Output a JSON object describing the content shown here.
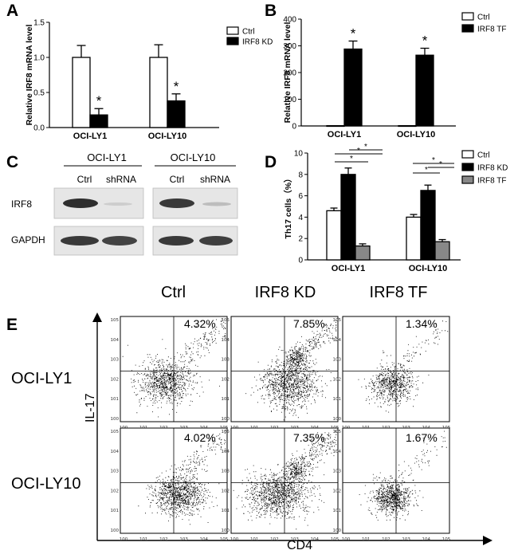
{
  "panels": {
    "A": "A",
    "B": "B",
    "C": "C",
    "D": "D",
    "E": "E"
  },
  "chart_data": [
    {
      "panel": "A",
      "type": "bar",
      "ylabel": "Relative IRF8 mRNA level",
      "ylim": [
        0,
        1.5
      ],
      "yticks": [
        0.0,
        0.5,
        1.0,
        1.5
      ],
      "ytick_labels": [
        "0.0",
        "0.5",
        "1.0",
        "1.5"
      ],
      "categories": [
        "OCI-LY1",
        "OCI-LY10"
      ],
      "series": [
        {
          "name": "Ctrl",
          "color": "#ffffff",
          "values": [
            1.0,
            1.0
          ],
          "errors": [
            0.17,
            0.18
          ],
          "sig": [
            "",
            ""
          ]
        },
        {
          "name": "IRF8 KD",
          "color": "#000000",
          "values": [
            0.18,
            0.38
          ],
          "errors": [
            0.09,
            0.1
          ],
          "sig": [
            "*",
            "*"
          ]
        }
      ]
    },
    {
      "panel": "B",
      "type": "bar",
      "ylabel": "Relative IRF8 mRNA level",
      "ylim": [
        0,
        400
      ],
      "yticks": [
        0,
        100,
        200,
        300,
        400
      ],
      "ytick_labels": [
        "0",
        "100",
        "200",
        "300",
        "400"
      ],
      "categories": [
        "OCI-LY1",
        "OCI-LY10"
      ],
      "series": [
        {
          "name": "Ctrl",
          "color": "#ffffff",
          "values": [
            1,
            1
          ],
          "errors": [
            0,
            0
          ],
          "sig": [
            "",
            ""
          ]
        },
        {
          "name": "IRF8 TF",
          "color": "#000000",
          "values": [
            288,
            265
          ],
          "errors": [
            30,
            26
          ],
          "sig": [
            "*",
            "*"
          ]
        }
      ]
    },
    {
      "panel": "D",
      "type": "bar",
      "ylabel": "Th17 cells（%）",
      "ylim": [
        0,
        10
      ],
      "yticks": [
        0,
        2,
        4,
        6,
        8,
        10
      ],
      "ytick_labels": [
        "0",
        "2",
        "4",
        "6",
        "8",
        "10"
      ],
      "categories": [
        "OCI-LY1",
        "OCI-LY10"
      ],
      "series": [
        {
          "name": "Ctrl",
          "color": "#ffffff",
          "values": [
            4.6,
            4.0
          ],
          "errors": [
            0.25,
            0.25
          ],
          "sig": [
            "",
            ""
          ]
        },
        {
          "name": "IRF8 KD",
          "color": "#000000",
          "values": [
            8.0,
            6.5
          ],
          "errors": [
            0.6,
            0.5
          ],
          "sig": [
            "",
            ""
          ]
        },
        {
          "name": "IRF8 TF",
          "color": "#888888",
          "values": [
            1.3,
            1.7
          ],
          "errors": [
            0.2,
            0.2
          ],
          "sig": [
            "",
            ""
          ]
        }
      ],
      "significance_brackets": [
        "*",
        "*",
        "*",
        "*",
        "*",
        "*"
      ]
    }
  ],
  "blot": {
    "groups": [
      {
        "title": "OCI-LY1",
        "lanes": [
          "Ctrl",
          "shRNA"
        ]
      },
      {
        "title": "OCI-LY10",
        "lanes": [
          "Ctrl",
          "shRNA"
        ]
      }
    ],
    "rows": [
      "IRF8",
      "GAPDH"
    ]
  },
  "flow": {
    "columns": [
      "Ctrl",
      "IRF8 KD",
      "IRF8 TF"
    ],
    "rows": [
      "OCI-LY1",
      "OCI-LY10"
    ],
    "percentages": [
      [
        "4.32%",
        "7.85%",
        "1.34%"
      ],
      [
        "4.02%",
        "7.35%",
        "1.67%"
      ]
    ],
    "x_axis_title": "CD4",
    "y_axis_title": "IL-17",
    "tick_base": "10",
    "tick_exponents": [
      "0",
      "1",
      "2",
      "3",
      "4",
      "5"
    ]
  }
}
